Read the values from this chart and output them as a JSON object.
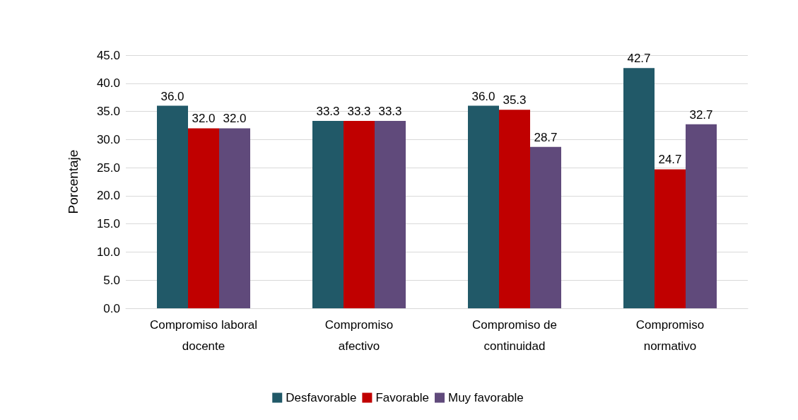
{
  "chart_data": {
    "type": "bar",
    "ylabel": "Porcentaje",
    "categories": [
      "Compromiso laboral\ndocente",
      "Compromiso\nafectivo",
      "Compromiso de\ncontinuidad",
      "Compromiso\nnormativo"
    ],
    "series": [
      {
        "name": "Desfavorable",
        "color": "#215968",
        "values": [
          36.0,
          33.3,
          36.0,
          42.7
        ],
        "value_labels": [
          "36.0",
          "33.3",
          "36.0",
          "42.7"
        ]
      },
      {
        "name": "Favorable",
        "color": "#c00000",
        "values": [
          32.0,
          33.3,
          35.3,
          24.7
        ],
        "value_labels": [
          "32.0",
          "33.3",
          "35.3",
          "24.7"
        ]
      },
      {
        "name": "Muy favorable",
        "color": "#604a7b",
        "values": [
          32.0,
          33.3,
          28.7,
          32.7
        ],
        "value_labels": [
          "32.0",
          "33.3",
          "28.7",
          "32.7"
        ]
      }
    ],
    "ylim": [
      0,
      45
    ],
    "yticks": [
      {
        "value": 0,
        "label": "0.0"
      },
      {
        "value": 5,
        "label": "5.0"
      },
      {
        "value": 10,
        "label": "10.0"
      },
      {
        "value": 15,
        "label": "15.0"
      },
      {
        "value": 20,
        "label": "20.0"
      },
      {
        "value": 25,
        "label": "25.0"
      },
      {
        "value": 30,
        "label": "30.0"
      },
      {
        "value": 35,
        "label": "35.0"
      },
      {
        "value": 40,
        "label": "40.0"
      },
      {
        "value": 45,
        "label": "45.0"
      }
    ],
    "grid": "y",
    "legend": "bottom"
  }
}
